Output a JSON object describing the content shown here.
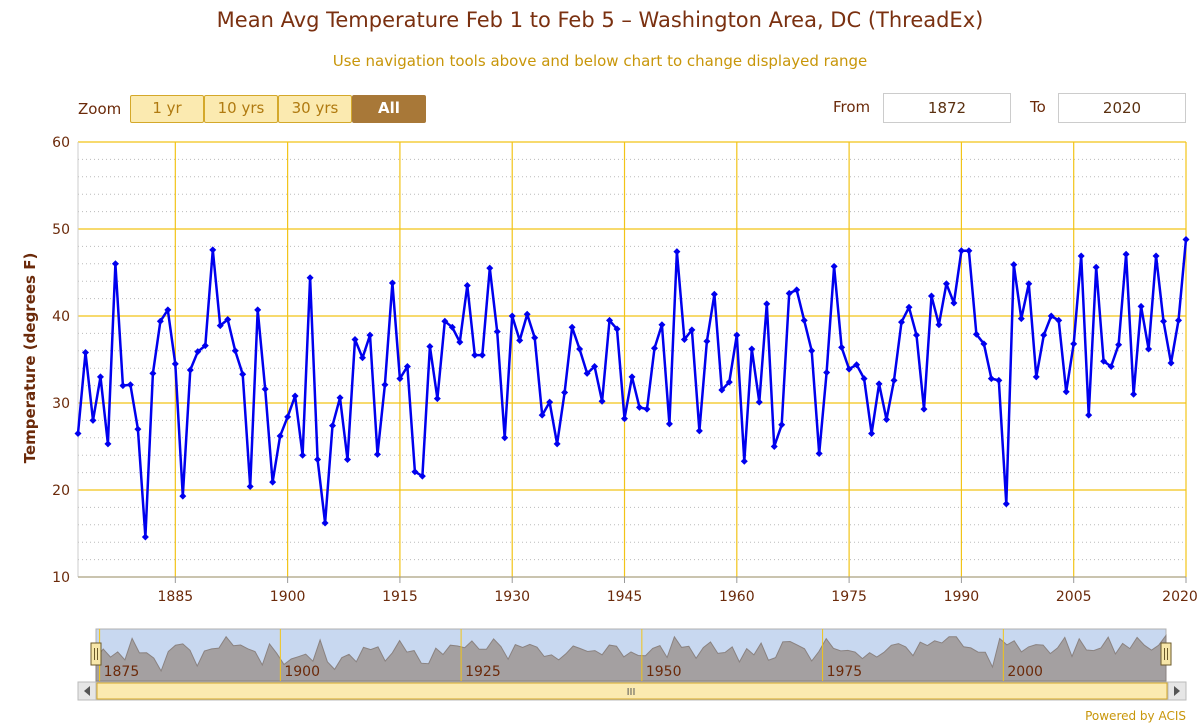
{
  "header": {
    "title": "Mean Avg Temperature Feb 1 to Feb 5 – Washington Area, DC (ThreadEx)",
    "subtitle": "Use navigation tools above and below chart to change displayed range"
  },
  "zoom": {
    "label": "Zoom",
    "buttons": [
      "1 yr",
      "10 yrs",
      "30 yrs",
      "All"
    ],
    "active": "All"
  },
  "range": {
    "from_label": "From",
    "from_value": "1872",
    "to_label": "To",
    "to_value": "2020"
  },
  "credits": "Powered by ACIS",
  "colors": {
    "series": "#0000ee",
    "grid": "#f2c418",
    "axis_text": "#6b2a0a",
    "navigator_fill": "#a09a98",
    "navigator_selection": "#c8d8f0"
  },
  "navigator": {
    "tick_labels": [
      "1875",
      "1900",
      "1925",
      "1950",
      "1975",
      "2000"
    ],
    "scrollbar_grip": "III"
  },
  "chart_data": {
    "type": "line",
    "title": "Mean Avg Temperature Feb 1 to Feb 5 – Washington Area, DC (ThreadEx)",
    "xlabel": "",
    "ylabel": "Temperature (degrees F)",
    "ylim": [
      10,
      60
    ],
    "xlim": [
      1872,
      2020
    ],
    "y_ticks": [
      10,
      20,
      30,
      40,
      50,
      60
    ],
    "x_ticks": [
      1885,
      1900,
      1915,
      1930,
      1945,
      1960,
      1975,
      1990,
      2005,
      2020
    ],
    "start_year": 1872,
    "series": [
      {
        "name": "Mean Avg Temperature",
        "values": [
          26.5,
          35.8,
          28.0,
          33.0,
          25.3,
          46.0,
          32.0,
          32.1,
          27.0,
          14.6,
          33.4,
          39.4,
          40.7,
          34.5,
          19.3,
          33.8,
          35.9,
          36.6,
          47.6,
          38.9,
          39.6,
          36.0,
          33.3,
          20.4,
          40.7,
          31.6,
          20.9,
          26.2,
          28.4,
          30.8,
          24.0,
          44.4,
          23.5,
          16.2,
          27.4,
          30.6,
          23.5,
          37.3,
          35.2,
          37.8,
          24.1,
          32.1,
          43.8,
          32.8,
          34.2,
          22.1,
          21.6,
          36.5,
          30.5,
          39.4,
          38.7,
          37.0,
          43.5,
          35.5,
          35.5,
          45.5,
          38.2,
          26.0,
          40.0,
          37.2,
          40.2,
          37.5,
          28.6,
          30.1,
          25.3,
          31.2,
          38.7,
          36.2,
          33.4,
          34.2,
          30.2,
          39.5,
          38.5,
          28.2,
          33.0,
          29.5,
          29.3,
          36.3,
          39.0,
          27.6,
          47.4,
          37.3,
          38.4,
          26.8,
          37.1,
          42.5,
          31.5,
          32.4,
          37.8,
          23.3,
          36.2,
          30.1,
          41.4,
          25.0,
          27.5,
          42.6,
          43.0,
          39.5,
          36.0,
          24.2,
          33.5,
          45.7,
          36.4,
          33.9,
          34.4,
          32.8,
          26.5,
          32.2,
          28.1,
          32.6,
          39.3,
          41.0,
          37.8,
          29.3,
          42.3,
          39.0,
          43.7,
          41.5,
          47.5,
          47.5,
          37.9,
          36.8,
          32.8,
          32.6,
          18.4,
          45.9,
          39.7,
          43.7,
          33.0,
          37.8,
          40.0,
          39.5,
          31.3,
          36.8,
          46.9,
          28.6,
          45.6,
          34.8,
          34.2,
          36.7,
          47.1,
          31.0,
          41.1,
          36.2,
          46.9,
          39.4,
          34.6,
          39.5,
          48.8
        ]
      }
    ]
  }
}
